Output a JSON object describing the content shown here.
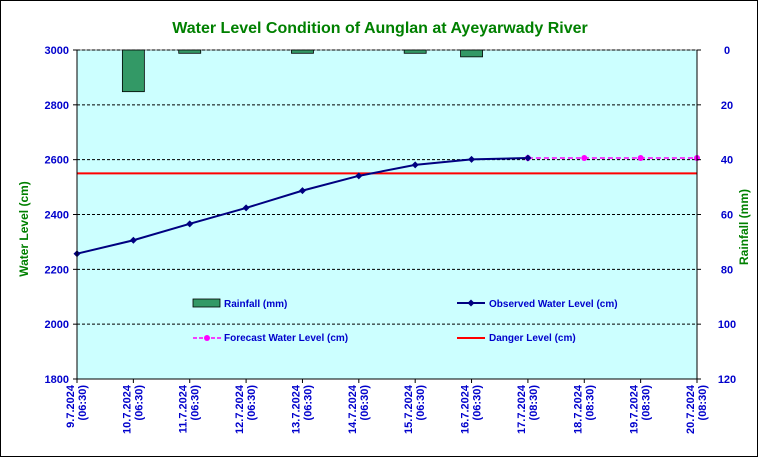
{
  "chart_data": {
    "type": "line",
    "title": "Water Level Condition of Aunglan at Ayeyarwady River",
    "ylabel_left": "Water Level (cm)",
    "ylabel_right": "Rainfall (mm)",
    "yleft_range": [
      1800,
      3000
    ],
    "yleft_ticks": [
      "1800",
      "2000",
      "2200",
      "2400",
      "2600",
      "2800",
      "3000"
    ],
    "yright_range": [
      0,
      120
    ],
    "yright_ticks": [
      "0",
      "20",
      "40",
      "60",
      "80",
      "100",
      "120"
    ],
    "categories": [
      [
        "9.7.2024",
        "(06:30)"
      ],
      [
        "10.7.2024",
        "(06:30)"
      ],
      [
        "11.7.2024",
        "(06:30)"
      ],
      [
        "12.7.2024",
        "(06:30)"
      ],
      [
        "13.7.2024",
        "(06:30)"
      ],
      [
        "14.7.2024",
        "(06:30)"
      ],
      [
        "15.7.2024",
        "(06:30)"
      ],
      [
        "16.7.2024",
        "(06:30)"
      ],
      [
        "17.7.2024",
        "(08:30)"
      ],
      [
        "18.7.2024",
        "(08:30)"
      ],
      [
        "19.7.2024",
        "(08:30)"
      ],
      [
        "20.7.2024",
        "(08:30)"
      ]
    ],
    "series": [
      {
        "name": "Rainfall (mm)",
        "kind": "bar",
        "axis": "right",
        "color": "#339966",
        "values": [
          null,
          15.2,
          1.2,
          null,
          1.2,
          null,
          1.2,
          2.5,
          null,
          null,
          null,
          null
        ]
      },
      {
        "name": "Observed Water Level (cm)",
        "kind": "line",
        "axis": "left",
        "color": "#000080",
        "values": [
          2257,
          2306,
          2366,
          2424,
          2487,
          2541,
          2581,
          2601,
          2606,
          null,
          null,
          null
        ]
      },
      {
        "name": "Forecast Water Level (cm)",
        "kind": "dashed-line",
        "axis": "left",
        "color": "#FF00FF",
        "values": [
          null,
          null,
          null,
          null,
          null,
          null,
          null,
          null,
          2606,
          2606,
          2606,
          2606
        ]
      },
      {
        "name": "Danger Level (cm)",
        "kind": "hline",
        "axis": "left",
        "color": "#FF0000",
        "value": 2550
      }
    ],
    "grid": true,
    "plot_background": "#CCFFFF",
    "title_color": "#008000",
    "tick_label_color": "#0000CC"
  }
}
